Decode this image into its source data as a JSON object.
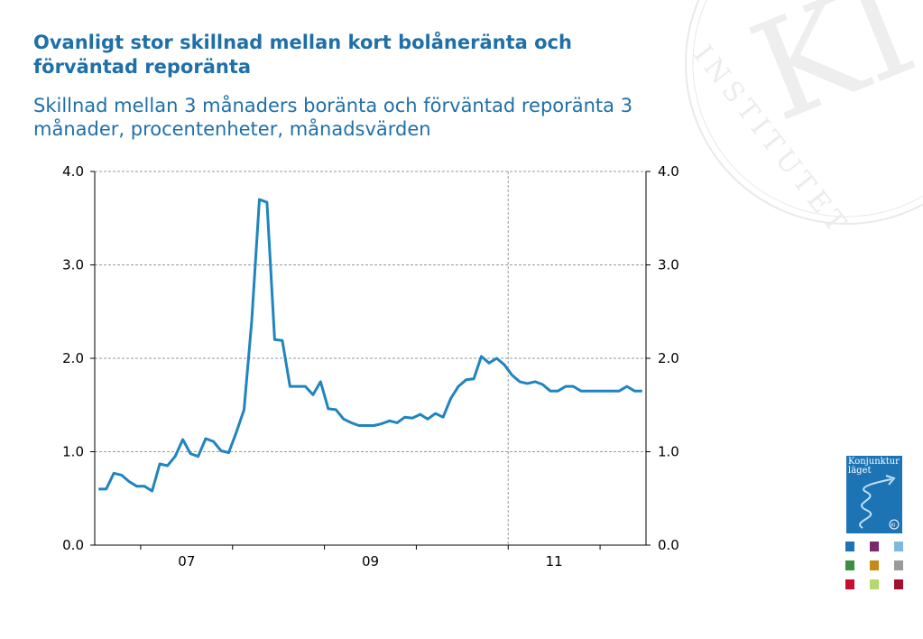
{
  "title": "Ovanligt stor skillnad mellan kort bolåneränta och förväntad reporänta",
  "subtitle": "Skillnad mellan 3 månaders boränta och förväntad reporänta 3 månader, procentenheter, månadsvärden",
  "seal": {
    "text": "INSTITUTET",
    "monogram": "KI"
  },
  "cover": {
    "title": "Konjunktur läget",
    "badge": "KI"
  },
  "thumbs": [
    "#1d74b4",
    "#7a2a6e",
    "#7fb8dc",
    "#3c8f3c",
    "#c58a17",
    "#9a9a9a",
    "#c8102e",
    "#b5d86a",
    "#a3122d"
  ],
  "colors": {
    "accent": "#1f6fa8",
    "line": "#1f84bf",
    "grid": "#999999"
  },
  "chart_data": {
    "type": "line",
    "ylim": [
      0,
      4
    ],
    "yticks": [
      "0.0",
      "1.0",
      "2.0",
      "3.0",
      "4.0"
    ],
    "xtick_labels": [
      "07",
      "09",
      "11"
    ],
    "x_start": "2006-07",
    "x_end": "2012-06",
    "grid": true,
    "series": [
      {
        "values": [
          0.6,
          0.6,
          0.77,
          0.75,
          0.68,
          0.63,
          0.63,
          0.58,
          0.87,
          0.85,
          0.95,
          1.13,
          0.98,
          0.95,
          1.14,
          1.11,
          1.01,
          0.99,
          1.21,
          1.45,
          2.4,
          3.7,
          3.67,
          2.2,
          2.19,
          1.7,
          1.7,
          1.7,
          1.61,
          1.75,
          1.46,
          1.45,
          1.35,
          1.31,
          1.28,
          1.28,
          1.28,
          1.3,
          1.33,
          1.31,
          1.37,
          1.36,
          1.4,
          1.35,
          1.41,
          1.37,
          1.57,
          1.7,
          1.77,
          1.78,
          2.02,
          1.95,
          2.0,
          1.93,
          1.82,
          1.75,
          1.73,
          1.75,
          1.72,
          1.65,
          1.65,
          1.7,
          1.7,
          1.65,
          1.65,
          1.65,
          1.65,
          1.65,
          1.65,
          1.7,
          1.65,
          1.65
        ]
      }
    ]
  }
}
